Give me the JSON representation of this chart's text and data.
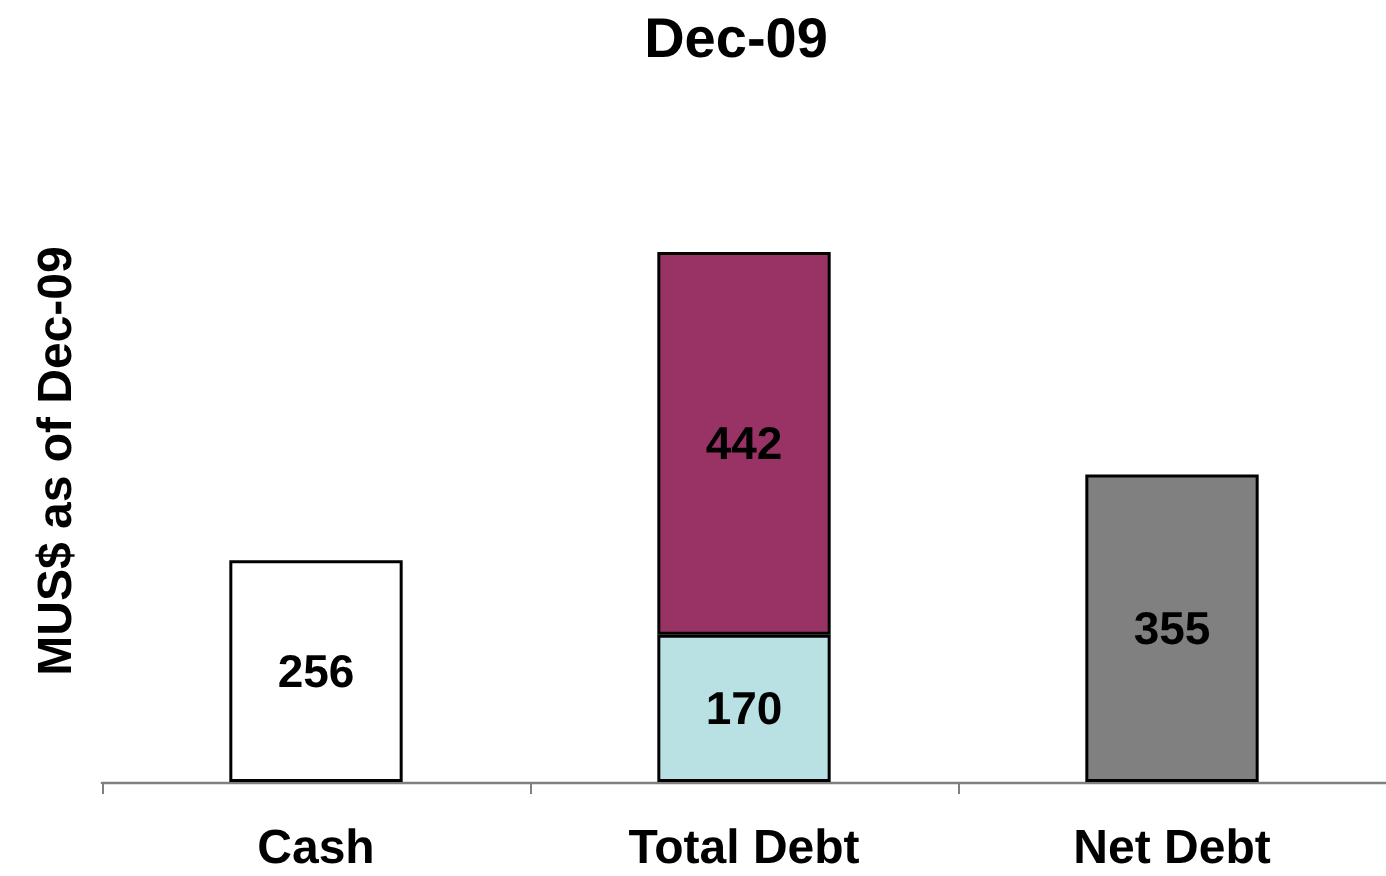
{
  "chart_data": {
    "type": "bar",
    "title": "Dec-09",
    "ylabel": "MUS$ as of Dec-09",
    "categories": [
      "Cash",
      "Total Debt",
      "Net Debt"
    ],
    "stacked": true,
    "series": [
      {
        "colors": [
          "#ffffff",
          "#b9e0e3",
          "#808080"
        ],
        "values": [
          256,
          170,
          355
        ]
      },
      {
        "color": "#993366",
        "values": [
          null,
          442,
          null
        ]
      }
    ],
    "data_labels": true,
    "grid": false
  }
}
